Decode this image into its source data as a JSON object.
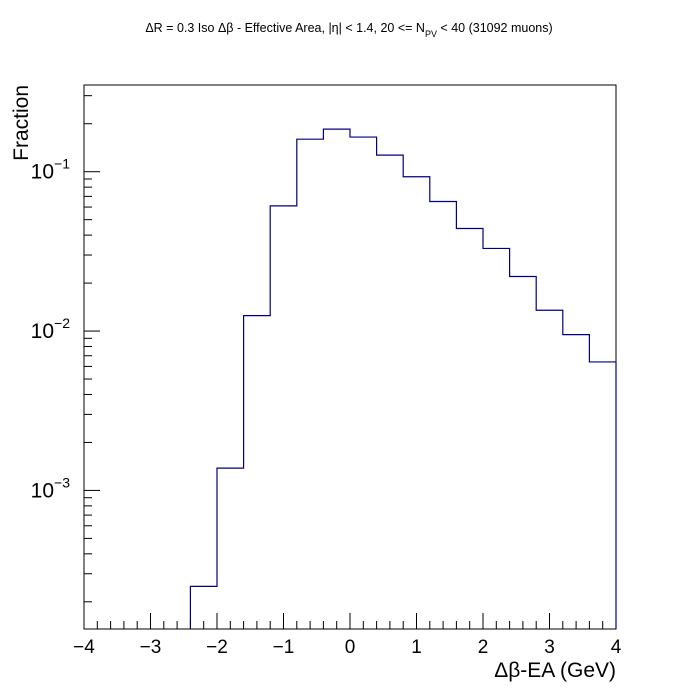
{
  "chart_data": {
    "type": "histogram",
    "title_parts": {
      "main": "ΔR = 0.3 Iso Δβ - Effective Area, |η| < 1.4, 20 <= N",
      "sub": "PV",
      "tail": " < 40 (31092 muons)"
    },
    "xlabel": "Δβ-EA (GeV)",
    "ylabel": "Fraction",
    "xlim": [
      -4,
      4
    ],
    "ylim": [
      0.000135,
      0.35
    ],
    "yscale": "log",
    "x_ticks": [
      {
        "v": -4,
        "label": "−4"
      },
      {
        "v": -3,
        "label": "−3"
      },
      {
        "v": -2,
        "label": "−2"
      },
      {
        "v": -1,
        "label": "−1"
      },
      {
        "v": 0,
        "label": "0"
      },
      {
        "v": 1,
        "label": "1"
      },
      {
        "v": 2,
        "label": "2"
      },
      {
        "v": 3,
        "label": "3"
      },
      {
        "v": 4,
        "label": "4"
      }
    ],
    "y_ticks": [
      {
        "exp": -3,
        "base": "10",
        "sup": "−3"
      },
      {
        "exp": -2,
        "base": "10",
        "sup": "−2"
      },
      {
        "exp": -1,
        "base": "10",
        "sup": "−1"
      }
    ],
    "line_color": "#000080",
    "bins": [
      {
        "lo": -2.4,
        "hi": -2.0,
        "v": 0.00025
      },
      {
        "lo": -2.0,
        "hi": -1.6,
        "v": 0.00138
      },
      {
        "lo": -1.6,
        "hi": -1.2,
        "v": 0.0125
      },
      {
        "lo": -1.2,
        "hi": -0.8,
        "v": 0.061
      },
      {
        "lo": -0.8,
        "hi": -0.4,
        "v": 0.16
      },
      {
        "lo": -0.4,
        "hi": 0.0,
        "v": 0.185
      },
      {
        "lo": 0.0,
        "hi": 0.4,
        "v": 0.165
      },
      {
        "lo": 0.4,
        "hi": 0.8,
        "v": 0.127
      },
      {
        "lo": 0.8,
        "hi": 1.2,
        "v": 0.093
      },
      {
        "lo": 1.2,
        "hi": 1.6,
        "v": 0.065
      },
      {
        "lo": 1.6,
        "hi": 2.0,
        "v": 0.044
      },
      {
        "lo": 2.0,
        "hi": 2.4,
        "v": 0.033
      },
      {
        "lo": 2.4,
        "hi": 2.8,
        "v": 0.022
      },
      {
        "lo": 2.8,
        "hi": 3.2,
        "v": 0.0135
      },
      {
        "lo": 3.2,
        "hi": 3.6,
        "v": 0.0095
      },
      {
        "lo": 3.6,
        "hi": 4.0,
        "v": 0.0064
      }
    ]
  }
}
